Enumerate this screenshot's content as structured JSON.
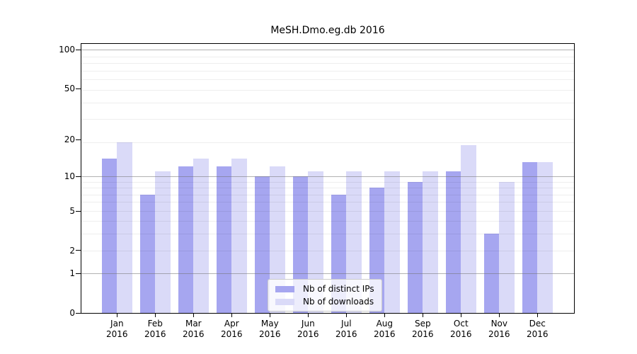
{
  "chart_data": {
    "type": "bar",
    "title": "MeSH.Dmo.eg.db 2016",
    "categories": [
      "Jan 2016",
      "Feb 2016",
      "Mar 2016",
      "Apr 2016",
      "May 2016",
      "Jun 2016",
      "Jul 2016",
      "Aug 2016",
      "Sep 2016",
      "Oct 2016",
      "Nov 2016",
      "Dec 2016"
    ],
    "series": [
      {
        "name": "Nb of distinct IPs",
        "color": "#a6a6f0",
        "values": [
          14,
          7,
          12,
          12,
          10,
          10,
          7,
          8,
          9,
          11,
          3,
          13
        ]
      },
      {
        "name": "Nb of downloads",
        "color": "#dadaf8",
        "values": [
          19,
          11,
          14,
          14,
          12,
          11,
          11,
          11,
          11,
          18,
          9,
          13
        ]
      }
    ],
    "xlabel": "",
    "ylabel": "",
    "yscale": "log1p",
    "ylim": [
      0,
      112
    ],
    "yticks": [
      0,
      1,
      2,
      5,
      10,
      20,
      50,
      100
    ],
    "grid": {
      "major": [
        1,
        10,
        100
      ],
      "minor": [
        2,
        3,
        4,
        5,
        6,
        7,
        8,
        9,
        19,
        29,
        39,
        49,
        59,
        69,
        79,
        89
      ]
    },
    "legend": {
      "position": "lower center",
      "items": [
        "Nb of distinct IPs",
        "Nb of downloads"
      ]
    },
    "colors": {
      "spine": "#000000",
      "background": "#ffffff"
    }
  }
}
